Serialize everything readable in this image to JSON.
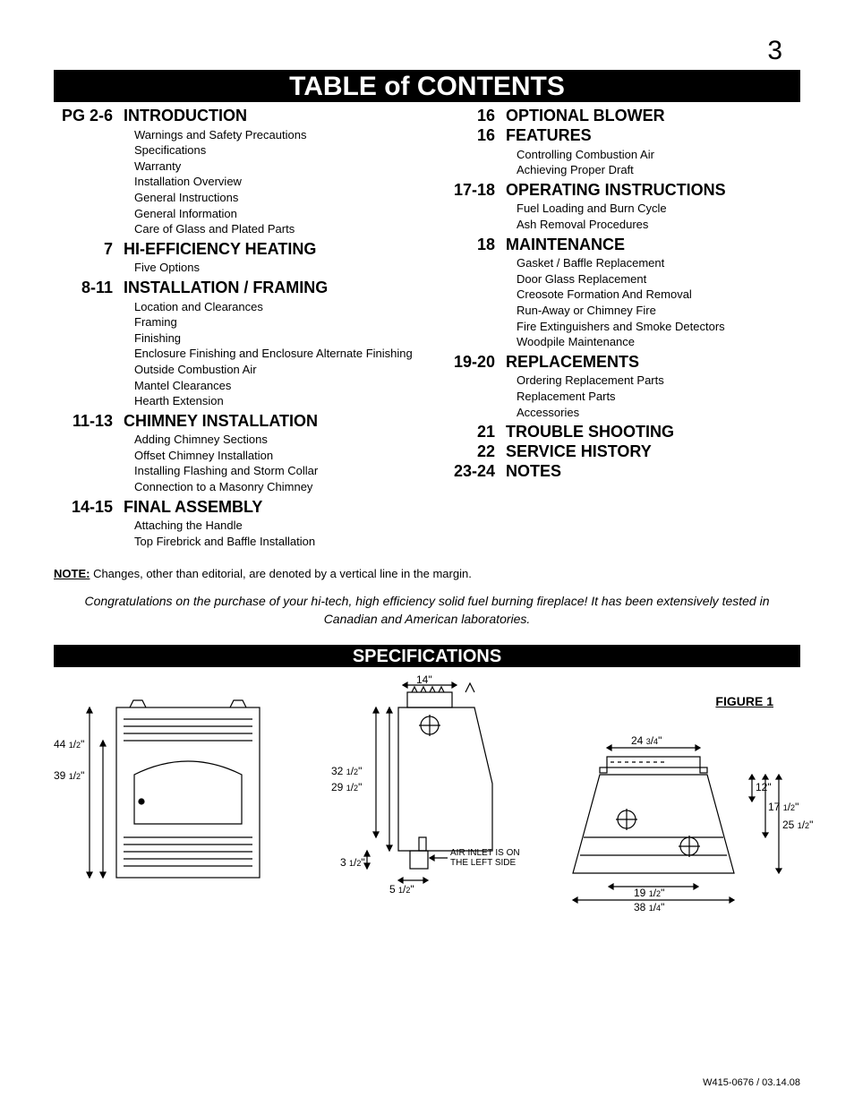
{
  "page_number": "3",
  "toc_heading_a": "TABLE",
  "toc_heading_b": "of",
  "toc_heading_c": "CONTENTS",
  "left": [
    {
      "pg": "PG 2-6",
      "title": "INTRODUCTION",
      "subs": [
        "Warnings and Safety Precautions",
        "Specifications",
        "Warranty",
        "Installation Overview",
        "General Instructions",
        "General Information",
        "Care of Glass and Plated Parts"
      ]
    },
    {
      "pg": "7",
      "title": "HI-EFFICIENCY HEATING",
      "subs": [
        "Five Options"
      ]
    },
    {
      "pg": "8-11",
      "title": "INSTALLATION / FRAMING",
      "subs": [
        "Location and Clearances",
        "Framing",
        "Finishing",
        "Enclosure Finishing and Enclosure Alternate Finishing",
        "Outside Combustion Air",
        "Mantel Clearances",
        "Hearth Extension"
      ]
    },
    {
      "pg": "11-13",
      "title": "CHIMNEY INSTALLATION",
      "subs": [
        "Adding Chimney Sections",
        "Offset Chimney Installation",
        "Installing Flashing and Storm Collar",
        "Connection to a Masonry Chimney"
      ]
    },
    {
      "pg": "14-15",
      "title": "FINAL ASSEMBLY",
      "subs": [
        "Attaching the Handle",
        "Top Firebrick and Baffle Installation"
      ]
    }
  ],
  "right": [
    {
      "pg": "16",
      "title": "OPTIONAL BLOWER",
      "subs": []
    },
    {
      "pg": "16",
      "title": "FEATURES",
      "subs": [
        "Controlling Combustion Air",
        "Achieving Proper Draft"
      ]
    },
    {
      "pg": "17-18",
      "title": "OPERATING INSTRUCTIONS",
      "subs": [
        "Fuel Loading and Burn Cycle",
        "Ash Removal Procedures"
      ]
    },
    {
      "pg": "18",
      "title": "MAINTENANCE",
      "subs": [
        "Gasket / Baffle Replacement",
        "Door Glass Replacement",
        "Creosote Formation And Removal",
        "Run-Away or Chimney Fire",
        "Fire Extinguishers and Smoke Detectors",
        "Woodpile Maintenance"
      ]
    },
    {
      "pg": "19-20",
      "title": "REPLACEMENTS",
      "subs": [
        "Ordering Replacement Parts",
        "Replacement Parts",
        "Accessories"
      ]
    },
    {
      "pg": "21",
      "title": "TROUBLE SHOOTING",
      "subs": []
    },
    {
      "pg": "22",
      "title": "SERVICE HISTORY",
      "subs": []
    },
    {
      "pg": "23-24",
      "title": "NOTES",
      "subs": []
    }
  ],
  "note_label": "NOTE:",
  "note_text": " Changes, other than editorial, are denoted by a vertical line in the margin.",
  "congrats": "Congratulations on the purchase of your hi-tech, high efficiency solid fuel burning fireplace! It has been extensively tested in Canadian and American laboratories.",
  "spec_heading": "SPECIFICATIONS",
  "figure_label": "FIGURE 1",
  "footer": "W415-0676 / 03.14.08",
  "diagrams": {
    "front": {
      "dims": {
        "overall_h": "44 1/2\"",
        "door_h": "39 1/2\""
      },
      "stroke": "#000000",
      "fill": "#ffffff"
    },
    "side": {
      "dims": {
        "flue_w": "14\"",
        "top_to_inlet": "32 1/2\"",
        "top_to_base": "29 1/2\"",
        "base_h": "3 1/2\"",
        "inlet_x": "5 1/2\""
      },
      "note_l1": "AIR INLET IS ON",
      "note_l2": "THE LEFT SIDE",
      "stroke": "#000000"
    },
    "top": {
      "dims": {
        "top_w": "24 3/4\"",
        "h1": "12\"",
        "h2": "17 1/2\"",
        "h3": "25 1/2\"",
        "inner_w": "19 1/2\"",
        "outer_w": "38 1/4\""
      },
      "stroke": "#000000"
    }
  }
}
